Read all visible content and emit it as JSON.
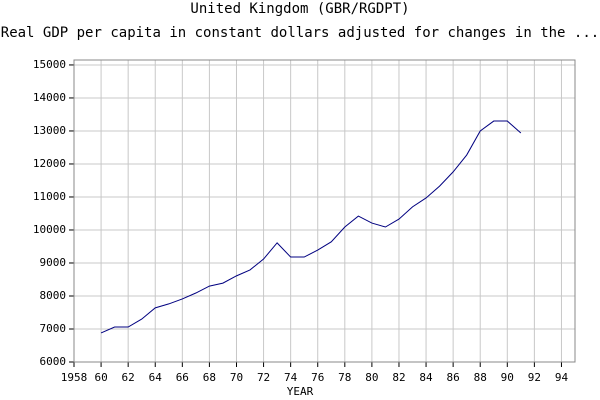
{
  "chart_data": {
    "type": "line",
    "title": "United Kingdom (GBR/RGDPT)",
    "subtitle": "Real GDP per capita in constant dollars adjusted for changes in the ...",
    "x_label": "YEAR",
    "x": [
      1960,
      1961,
      1962,
      1963,
      1964,
      1965,
      1966,
      1967,
      1968,
      1969,
      1970,
      1971,
      1972,
      1973,
      1974,
      1975,
      1976,
      1977,
      1978,
      1979,
      1980,
      1981,
      1982,
      1983,
      1984,
      1985,
      1986,
      1987,
      1988,
      1989,
      1990,
      1991
    ],
    "series": [
      {
        "color": "#000080",
        "values": [
          6880,
          7060,
          7060,
          7300,
          7640,
          7760,
          7910,
          8090,
          8300,
          8390,
          8610,
          8790,
          9120,
          9610,
          9180,
          9180,
          9390,
          9640,
          10090,
          10420,
          10210,
          10090,
          10330,
          10700,
          10970,
          11330,
          11760,
          12270,
          13000,
          13300,
          13300,
          12940
        ]
      }
    ],
    "xlim": [
      1958,
      1995
    ],
    "xticks": [
      1958,
      {
        "value": 1960,
        "label": "60"
      },
      {
        "value": 1962,
        "label": "62"
      },
      {
        "value": 1964,
        "label": "64"
      },
      {
        "value": 1966,
        "label": "66"
      },
      {
        "value": 1968,
        "label": "68"
      },
      {
        "value": 1970,
        "label": "70"
      },
      {
        "value": 1972,
        "label": "72"
      },
      {
        "value": 1974,
        "label": "74"
      },
      {
        "value": 1976,
        "label": "76"
      },
      {
        "value": 1978,
        "label": "78"
      },
      {
        "value": 1980,
        "label": "80"
      },
      {
        "value": 1982,
        "label": "82"
      },
      {
        "value": 1984,
        "label": "84"
      },
      {
        "value": 1986,
        "label": "86"
      },
      {
        "value": 1988,
        "label": "88"
      },
      {
        "value": 1990,
        "label": "90"
      },
      {
        "value": 1992,
        "label": "92"
      },
      {
        "value": 1994,
        "label": "94"
      }
    ],
    "ylim": [
      6000,
      15150
    ],
    "yticks": [
      6000,
      7000,
      8000,
      9000,
      10000,
      11000,
      12000,
      13000,
      14000,
      15000
    ],
    "grid": true
  }
}
